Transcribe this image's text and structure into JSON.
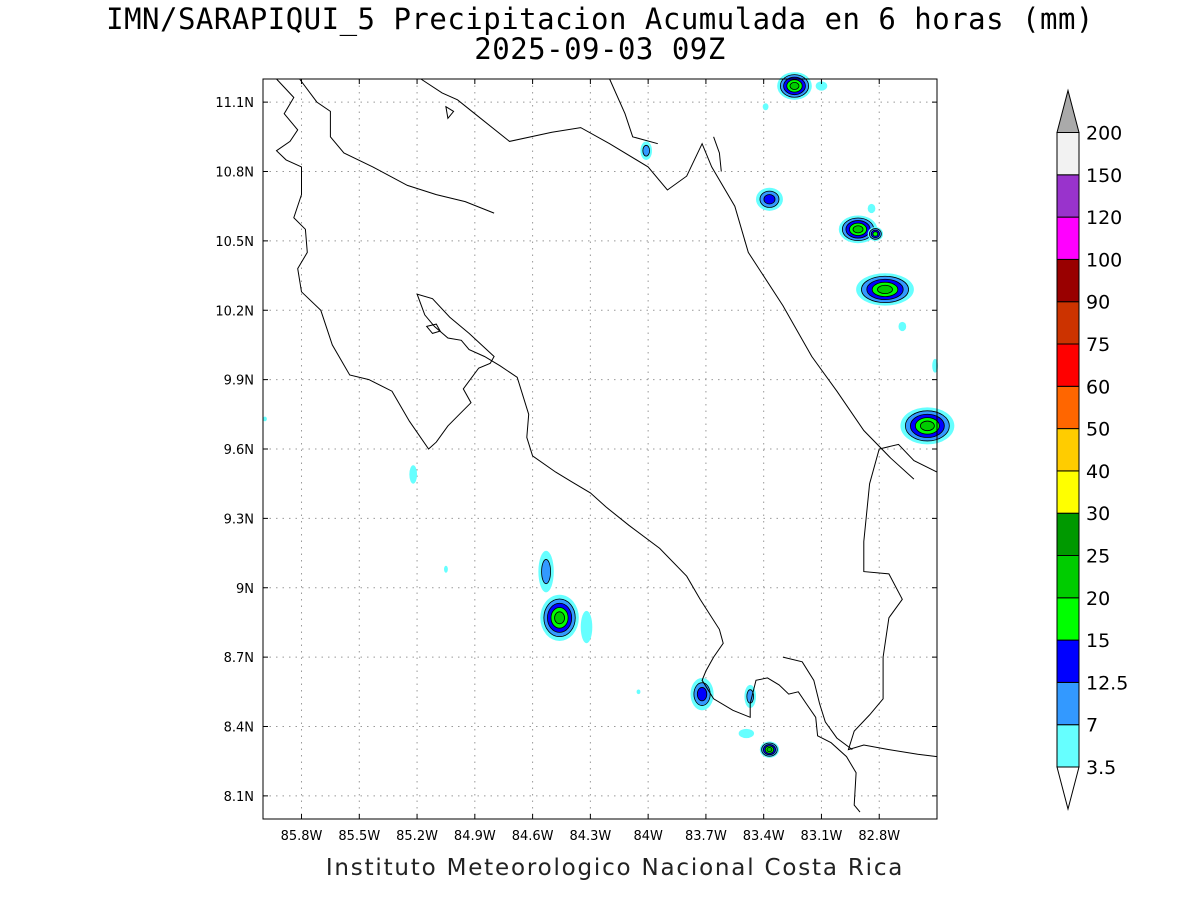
{
  "title_line1": "IMN/SARAPIQUI_5 Precipitacion Acumulada en 6 horas (mm)",
  "title_line2": "2025-09-03 09Z",
  "footer": "Instituto Meteorologico Nacional Costa Rica",
  "map": {
    "lon_range": [
      -86.0,
      -82.5
    ],
    "lat_range": [
      8.0,
      11.2
    ],
    "x_ticks": [
      {
        "lon": -85.8,
        "label": "85.8W"
      },
      {
        "lon": -85.5,
        "label": "85.5W"
      },
      {
        "lon": -85.2,
        "label": "85.2W"
      },
      {
        "lon": -84.9,
        "label": "84.9W"
      },
      {
        "lon": -84.6,
        "label": "84.6W"
      },
      {
        "lon": -84.3,
        "label": "84.3W"
      },
      {
        "lon": -84.0,
        "label": "84W"
      },
      {
        "lon": -83.7,
        "label": "83.7W"
      },
      {
        "lon": -83.4,
        "label": "83.4W"
      },
      {
        "lon": -83.1,
        "label": "83.1W"
      },
      {
        "lon": -82.8,
        "label": "82.8W"
      }
    ],
    "y_ticks": [
      {
        "lat": 11.1,
        "label": "11.1N"
      },
      {
        "lat": 10.8,
        "label": "10.8N"
      },
      {
        "lat": 10.5,
        "label": "10.5N"
      },
      {
        "lat": 10.2,
        "label": "10.2N"
      },
      {
        "lat": 9.9,
        "label": "9.9N"
      },
      {
        "lat": 9.6,
        "label": "9.6N"
      },
      {
        "lat": 9.3,
        "label": "9.3N"
      },
      {
        "lat": 9.0,
        "label": "9N"
      },
      {
        "lat": 8.7,
        "label": "8.7N"
      },
      {
        "lat": 8.4,
        "label": "8.4N"
      },
      {
        "lat": 8.1,
        "label": "8.1N"
      }
    ],
    "grid": true,
    "coastlines": [
      [
        [
          -85.93,
          11.2
        ],
        [
          -85.84,
          11.12
        ],
        [
          -85.89,
          11.05
        ],
        [
          -85.82,
          10.98
        ],
        [
          -85.86,
          10.93
        ],
        [
          -85.93,
          10.89
        ],
        [
          -85.88,
          10.85
        ],
        [
          -85.8,
          10.82
        ],
        [
          -85.8,
          10.7
        ],
        [
          -85.84,
          10.6
        ],
        [
          -85.78,
          10.55
        ],
        [
          -85.77,
          10.45
        ],
        [
          -85.82,
          10.38
        ],
        [
          -85.8,
          10.28
        ],
        [
          -85.7,
          10.2
        ],
        [
          -85.64,
          10.05
        ],
        [
          -85.55,
          9.92
        ],
        [
          -85.45,
          9.9
        ],
        [
          -85.33,
          9.85
        ],
        [
          -85.24,
          9.72
        ],
        [
          -85.14,
          9.6
        ],
        [
          -85.1,
          9.63
        ],
        [
          -85.04,
          9.7
        ],
        [
          -84.98,
          9.75
        ],
        [
          -84.92,
          9.8
        ],
        [
          -84.96,
          9.86
        ],
        [
          -84.88,
          9.95
        ],
        [
          -84.82,
          9.97
        ],
        [
          -84.8,
          10.0
        ],
        [
          -84.93,
          10.1
        ],
        [
          -85.03,
          10.17
        ],
        [
          -85.12,
          10.25
        ],
        [
          -85.2,
          10.27
        ],
        [
          -85.16,
          10.18
        ],
        [
          -85.11,
          10.13
        ],
        [
          -85.04,
          10.08
        ],
        [
          -84.97,
          10.07
        ],
        [
          -84.93,
          10.03
        ],
        [
          -84.85,
          10.0
        ],
        [
          -84.77,
          9.96
        ],
        [
          -84.68,
          9.91
        ],
        [
          -84.62,
          9.75
        ],
        [
          -84.63,
          9.65
        ],
        [
          -84.6,
          9.57
        ],
        [
          -84.48,
          9.5
        ],
        [
          -84.4,
          9.46
        ],
        [
          -84.3,
          9.41
        ],
        [
          -84.22,
          9.35
        ],
        [
          -84.1,
          9.27
        ],
        [
          -83.94,
          9.17
        ],
        [
          -83.8,
          9.05
        ],
        [
          -83.73,
          8.95
        ],
        [
          -83.63,
          8.82
        ],
        [
          -83.61,
          8.76
        ],
        [
          -83.66,
          8.7
        ],
        [
          -83.7,
          8.64
        ],
        [
          -83.72,
          8.6
        ],
        [
          -83.66,
          8.52
        ],
        [
          -83.56,
          8.47
        ],
        [
          -83.47,
          8.44
        ],
        [
          -83.47,
          8.5
        ],
        [
          -83.44,
          8.6
        ],
        [
          -83.38,
          8.61
        ],
        [
          -83.32,
          8.58
        ],
        [
          -83.27,
          8.54
        ],
        [
          -83.22,
          8.55
        ],
        [
          -83.18,
          8.5
        ],
        [
          -83.13,
          8.44
        ],
        [
          -83.12,
          8.36
        ],
        [
          -83.05,
          8.33
        ],
        [
          -82.97,
          8.27
        ],
        [
          -82.92,
          8.2
        ],
        [
          -82.93,
          8.06
        ],
        [
          -82.9,
          8.03
        ]
      ],
      [
        [
          -85.81,
          11.2
        ],
        [
          -85.72,
          11.1
        ],
        [
          -85.65,
          11.06
        ],
        [
          -85.65,
          10.95
        ],
        [
          -85.58,
          10.88
        ],
        [
          -85.43,
          10.82
        ],
        [
          -85.25,
          10.74
        ],
        [
          -85.1,
          10.7
        ],
        [
          -84.95,
          10.67
        ],
        [
          -84.8,
          10.62
        ]
      ],
      [
        [
          -85.18,
          11.2
        ],
        [
          -85.07,
          11.14
        ],
        [
          -84.99,
          11.11
        ],
        [
          -84.9,
          11.05
        ],
        [
          -84.72,
          10.93
        ],
        [
          -84.5,
          10.97
        ],
        [
          -84.35,
          10.99
        ],
        [
          -84.2,
          10.92
        ],
        [
          -84.0,
          10.82
        ],
        [
          -83.9,
          10.72
        ],
        [
          -83.8,
          10.78
        ],
        [
          -83.72,
          10.92
        ],
        [
          -83.67,
          10.82
        ],
        [
          -83.55,
          10.65
        ],
        [
          -83.48,
          10.45
        ],
        [
          -83.3,
          10.22
        ],
        [
          -83.15,
          10.0
        ],
        [
          -83.02,
          9.85
        ],
        [
          -82.88,
          9.68
        ],
        [
          -82.74,
          9.56
        ],
        [
          -82.62,
          9.47
        ]
      ],
      [
        [
          -83.66,
          10.95
        ],
        [
          -83.63,
          10.88
        ],
        [
          -83.62,
          10.8
        ]
      ],
      [
        [
          -84.2,
          11.2
        ],
        [
          -84.12,
          11.05
        ],
        [
          -84.08,
          10.95
        ],
        [
          -83.95,
          10.92
        ]
      ],
      [
        [
          -82.5,
          9.5
        ],
        [
          -82.62,
          9.55
        ],
        [
          -82.7,
          9.62
        ],
        [
          -82.8,
          9.6
        ],
        [
          -82.85,
          9.45
        ],
        [
          -82.88,
          9.2
        ],
        [
          -82.88,
          9.07
        ],
        [
          -82.75,
          9.06
        ],
        [
          -82.68,
          8.95
        ],
        [
          -82.75,
          8.87
        ],
        [
          -82.78,
          8.7
        ],
        [
          -82.78,
          8.52
        ],
        [
          -82.85,
          8.45
        ],
        [
          -82.93,
          8.38
        ],
        [
          -82.96,
          8.3
        ],
        [
          -82.88,
          8.32
        ],
        [
          -82.75,
          8.3
        ],
        [
          -82.6,
          8.28
        ],
        [
          -82.5,
          8.27
        ]
      ],
      [
        [
          -83.3,
          8.7
        ],
        [
          -83.2,
          8.68
        ],
        [
          -83.14,
          8.6
        ],
        [
          -83.11,
          8.5
        ],
        [
          -83.08,
          8.42
        ],
        [
          -83.02,
          8.35
        ],
        [
          -82.94,
          8.3
        ]
      ]
    ],
    "islands": [
      [
        [
          -85.15,
          10.13
        ],
        [
          -85.1,
          10.14
        ],
        [
          -85.08,
          10.11
        ],
        [
          -85.12,
          10.1
        ]
      ],
      [
        [
          -85.05,
          11.08
        ],
        [
          -85.01,
          11.06
        ],
        [
          -85.04,
          11.03
        ]
      ]
    ],
    "precip_blobs": [
      {
        "lon": -83.24,
        "lat": 11.17,
        "rx": 0.09,
        "ry": 0.06,
        "levels": [
          20
        ]
      },
      {
        "lon": -83.1,
        "lat": 11.17,
        "rx": 0.03,
        "ry": 0.02,
        "levels": [
          3.5
        ]
      },
      {
        "lon": -83.39,
        "lat": 11.08,
        "rx": 0.015,
        "ry": 0.015,
        "levels": [
          3.5
        ]
      },
      {
        "lon": -84.01,
        "lat": 10.89,
        "rx": 0.03,
        "ry": 0.04,
        "levels": [
          7
        ]
      },
      {
        "lon": -83.37,
        "lat": 10.68,
        "rx": 0.07,
        "ry": 0.05,
        "levels": [
          12.5
        ]
      },
      {
        "lon": -82.91,
        "lat": 10.55,
        "rx": 0.1,
        "ry": 0.06,
        "levels": [
          20
        ]
      },
      {
        "lon": -82.82,
        "lat": 10.53,
        "rx": 0.04,
        "ry": 0.03,
        "levels": [
          15
        ]
      },
      {
        "lon": -82.84,
        "lat": 10.64,
        "rx": 0.02,
        "ry": 0.02,
        "levels": [
          3.5
        ]
      },
      {
        "lon": -82.77,
        "lat": 10.29,
        "rx": 0.15,
        "ry": 0.07,
        "levels": [
          20
        ]
      },
      {
        "lon": -82.68,
        "lat": 10.13,
        "rx": 0.02,
        "ry": 0.02,
        "levels": [
          3.5
        ]
      },
      {
        "lon": -82.55,
        "lat": 9.7,
        "rx": 0.14,
        "ry": 0.08,
        "levels": [
          20
        ]
      },
      {
        "lon": -82.51,
        "lat": 9.96,
        "rx": 0.015,
        "ry": 0.03,
        "levels": [
          3.5
        ]
      },
      {
        "lon": -85.22,
        "lat": 9.49,
        "rx": 0.02,
        "ry": 0.04,
        "levels": [
          3.5
        ]
      },
      {
        "lon": -85.05,
        "lat": 9.08,
        "rx": 0.01,
        "ry": 0.015,
        "levels": [
          3.5
        ]
      },
      {
        "lon": -84.53,
        "lat": 9.07,
        "rx": 0.04,
        "ry": 0.09,
        "levels": [
          7
        ]
      },
      {
        "lon": -84.46,
        "lat": 8.87,
        "rx": 0.1,
        "ry": 0.1,
        "levels": [
          20
        ]
      },
      {
        "lon": -84.32,
        "lat": 8.83,
        "rx": 0.03,
        "ry": 0.07,
        "levels": [
          3.5
        ]
      },
      {
        "lon": -83.72,
        "lat": 8.54,
        "rx": 0.06,
        "ry": 0.07,
        "levels": [
          12.5
        ]
      },
      {
        "lon": -83.47,
        "lat": 8.53,
        "rx": 0.03,
        "ry": 0.05,
        "levels": [
          7
        ]
      },
      {
        "lon": -83.49,
        "lat": 8.37,
        "rx": 0.04,
        "ry": 0.02,
        "levels": [
          3.5
        ]
      },
      {
        "lon": -83.37,
        "lat": 8.3,
        "rx": 0.05,
        "ry": 0.035,
        "levels": [
          20
        ]
      },
      {
        "lon": -84.05,
        "lat": 8.55,
        "rx": 0.01,
        "ry": 0.01,
        "levels": [
          3.5
        ]
      },
      {
        "lon": -85.99,
        "lat": 9.73,
        "rx": 0.01,
        "ry": 0.01,
        "levels": [
          3.5
        ]
      }
    ]
  },
  "legend": {
    "labels": [
      "3.5",
      "7",
      "12.5",
      "15",
      "20",
      "25",
      "30",
      "40",
      "50",
      "60",
      "75",
      "90",
      "100",
      "120",
      "150",
      "200"
    ],
    "colors": [
      "#ffffff",
      "#66ffff",
      "#3399ff",
      "#0000ff",
      "#00ff00",
      "#00cc00",
      "#009900",
      "#ffff00",
      "#ffcc00",
      "#ff6600",
      "#ff0000",
      "#cc3300",
      "#990000",
      "#ff00ff",
      "#9933cc",
      "#f2f2f2",
      "#aaaaaa"
    ],
    "low_arrow_color": "#ffffff",
    "high_arrow_color": "#aaaaaa"
  }
}
